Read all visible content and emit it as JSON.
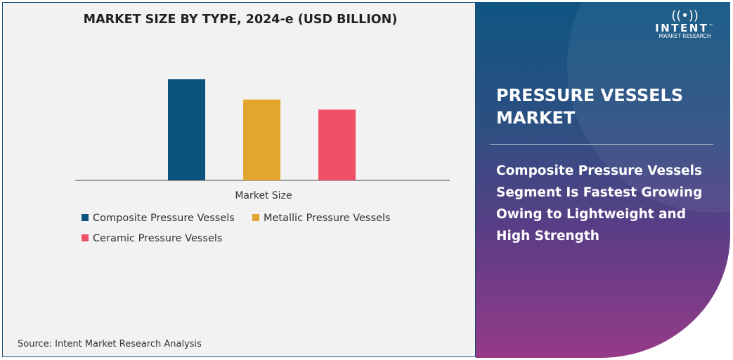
{
  "chart_data": {
    "type": "bar",
    "title": "MARKET SIZE BY TYPE, 2024-e (USD BILLION)",
    "xlabel": "Market Size",
    "ylabel": "",
    "categories": [
      "Market Size"
    ],
    "series": [
      {
        "name": "Composite Pressure Vessels",
        "values": [
          100
        ],
        "color": "#0b527c"
      },
      {
        "name": "Metallic Pressure Vessels",
        "values": [
          80
        ],
        "color": "#e2a62f"
      },
      {
        "name": "Ceramic Pressure Vessels",
        "values": [
          70
        ],
        "color": "#f04f68"
      }
    ],
    "value_note": "relative heights; no value axis shown",
    "ylim": [
      0,
      100
    ],
    "grid": false,
    "legend_position": "bottom"
  },
  "source": "Source: Intent Market Research Analysis",
  "panel": {
    "title": "PRESSURE VESSELS MARKET",
    "text": "Composite Pressure Vessels Segment Is Fastest Growing Owing to Lightweight and High Strength",
    "logo": {
      "name": "INTENT",
      "sub": "MARKET RESEARCH",
      "tm": "™"
    }
  }
}
